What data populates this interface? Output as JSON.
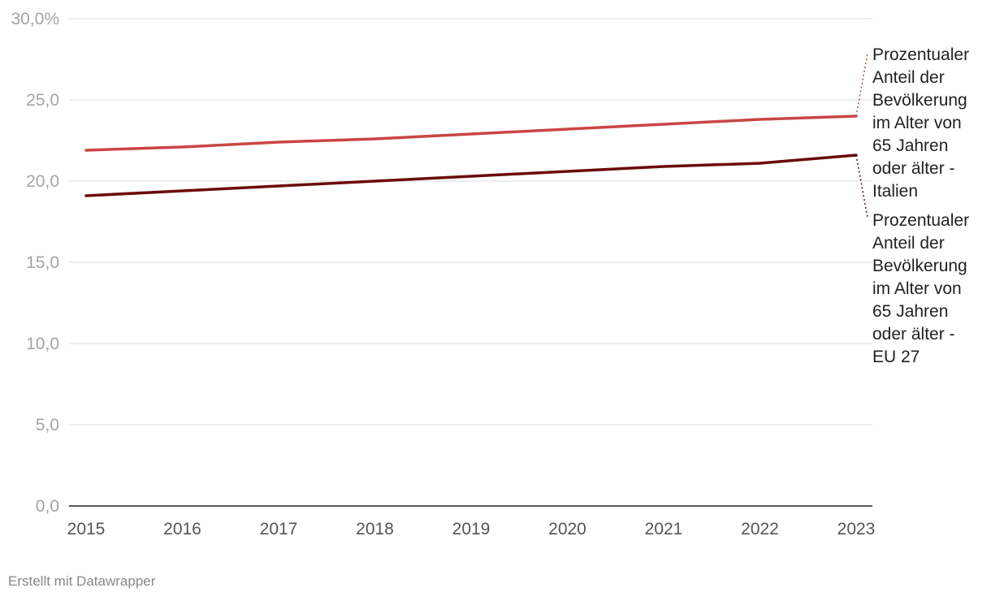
{
  "footer": {
    "credit": "Erstellt mit Datawrapper"
  },
  "colors": {
    "italien": "#c94545",
    "eu27": "#6b0a0a",
    "grid": "#e2e2e2",
    "axis": "#222222",
    "tick_label": "#a4a4a4",
    "x_label": "#555555"
  },
  "chart_data": {
    "type": "line",
    "title": "",
    "xlabel": "",
    "ylabel": "",
    "x": [
      2015,
      2016,
      2017,
      2018,
      2019,
      2020,
      2021,
      2022,
      2023
    ],
    "x_tick_labels": [
      "2015",
      "2016",
      "2017",
      "2018",
      "2019",
      "2020",
      "2021",
      "2022",
      "2023"
    ],
    "ylim": [
      0,
      30
    ],
    "y_ticks": [
      0,
      5,
      10,
      15,
      20,
      25,
      30
    ],
    "y_tick_labels": [
      "0,0",
      "5,0",
      "10,0",
      "15,0",
      "20,0",
      "25,0",
      "30,0%"
    ],
    "grid": true,
    "legend": "direct labels at right end of lines",
    "series": [
      {
        "name": "Prozentualer Anteil der Bevölkerung im Alter von 65 Jahren oder älter - Italien",
        "label_lines": [
          "Prozentualer",
          "Anteil der",
          "Bevölkerung",
          "im Alter von",
          "65 Jahren",
          "oder älter -",
          "Italien"
        ],
        "color": "#c94545",
        "values": [
          21.9,
          22.1,
          22.4,
          22.6,
          22.9,
          23.2,
          23.5,
          23.8,
          24.0
        ]
      },
      {
        "name": "Prozentualer Anteil der Bevölkerung im Alter von 65 Jahren oder älter - EU 27",
        "label_lines": [
          "Prozentualer",
          "Anteil der",
          "Bevölkerung",
          "im Alter von",
          "65 Jahren",
          "oder älter -",
          "EU 27"
        ],
        "color": "#6b0a0a",
        "values": [
          19.1,
          19.4,
          19.7,
          20.0,
          20.3,
          20.6,
          20.9,
          21.1,
          21.6
        ]
      }
    ]
  }
}
